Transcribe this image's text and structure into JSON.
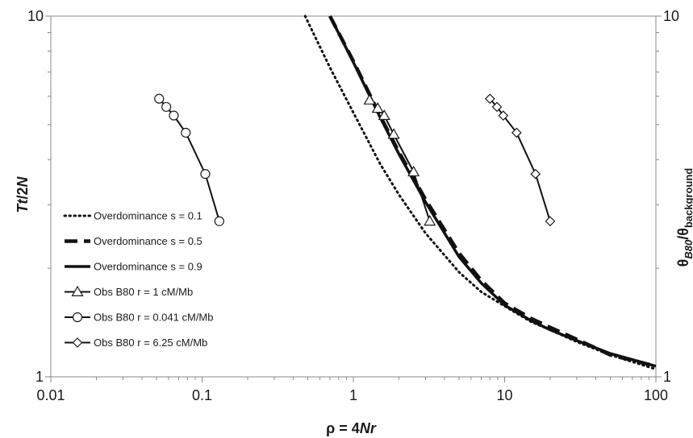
{
  "chart_data": {
    "type": "line",
    "x_scale": "log",
    "y_scale": "log",
    "xlim": [
      0.01,
      100
    ],
    "ylim": [
      1,
      10
    ],
    "x_ticks": [
      "0.01",
      "0.1",
      "1",
      "10",
      "100"
    ],
    "y_ticks_left": [
      "1",
      "10"
    ],
    "y_ticks_right": [
      "1",
      "10"
    ],
    "xlabel": {
      "prefix": "ρ = 4",
      "italic": "Nr"
    },
    "ylabel_left": {
      "italic": "Tt",
      "suffix": "/2",
      "italic2": "N"
    },
    "ylabel_right": {
      "theta": "θ",
      "sub1": "B80",
      "slash": "/θ",
      "sub2": "background"
    },
    "legend_position": "left",
    "grid": false,
    "series": [
      {
        "name": "Overdominance s = 0.1",
        "style": "dotted",
        "marker": "none",
        "x": [
          0.48,
          0.7,
          1.0,
          1.5,
          2.0,
          3.0,
          5.0,
          7.0,
          10,
          15,
          20,
          30,
          50,
          100
        ],
        "y": [
          10,
          7.2,
          5.4,
          3.9,
          3.2,
          2.5,
          1.95,
          1.72,
          1.57,
          1.42,
          1.35,
          1.25,
          1.15,
          1.05
        ]
      },
      {
        "name": "Overdominance s = 0.5",
        "style": "dashed",
        "marker": "none",
        "x": [
          0.7,
          1.0,
          1.5,
          2.0,
          3.0,
          5.0,
          7.0,
          10,
          15,
          20,
          30,
          50,
          100
        ],
        "y": [
          10,
          7.5,
          5.3,
          4.2,
          3.1,
          2.2,
          1.85,
          1.6,
          1.45,
          1.37,
          1.27,
          1.15,
          1.07
        ]
      },
      {
        "name": "Overdominance s = 0.9",
        "style": "solid",
        "marker": "none",
        "x": [
          0.7,
          1.0,
          1.5,
          2.0,
          3.0,
          5.0,
          7.0,
          10,
          15,
          20,
          30,
          50,
          100
        ],
        "y": [
          10,
          7.45,
          5.25,
          4.15,
          3.05,
          2.15,
          1.82,
          1.58,
          1.43,
          1.35,
          1.26,
          1.16,
          1.07
        ]
      },
      {
        "name": "Obs B80 r = 1 cM/Mb",
        "style": "solid",
        "marker": "triangle",
        "x": [
          1.28,
          1.45,
          1.6,
          1.85,
          2.5,
          3.2
        ],
        "y": [
          5.85,
          5.55,
          5.3,
          4.7,
          3.7,
          2.7
        ]
      },
      {
        "name": "Obs B80 r = 0.041 cM/Mb",
        "style": "solid",
        "marker": "circle",
        "x": [
          0.052,
          0.058,
          0.065,
          0.078,
          0.105,
          0.13
        ],
        "y": [
          5.9,
          5.6,
          5.3,
          4.75,
          3.65,
          2.7
        ]
      },
      {
        "name": "Obs B80 r = 6.25 cM/Mb",
        "style": "solid",
        "marker": "diamond",
        "x": [
          8.0,
          8.9,
          9.8,
          12.0,
          16.0,
          20.0
        ],
        "y": [
          5.9,
          5.6,
          5.3,
          4.75,
          3.65,
          2.7
        ]
      }
    ]
  }
}
